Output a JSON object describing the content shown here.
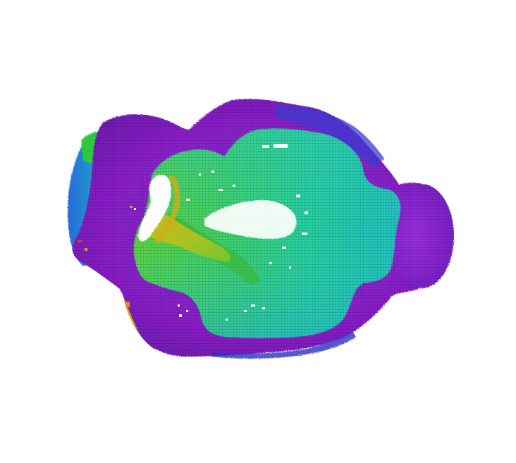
{
  "scene": {
    "subject": "voxel-surface",
    "colormap": [
      "#8a1fc8",
      "#6a2ad6",
      "#3340c8",
      "#1e8fd0",
      "#21c7b8",
      "#33d07a",
      "#66d233",
      "#a8c81e",
      "#d8a418",
      "#d06a1a"
    ],
    "background": "#ffffff"
  }
}
